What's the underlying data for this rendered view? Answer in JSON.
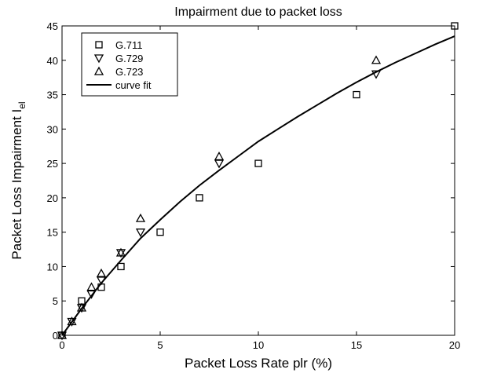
{
  "chart_data": {
    "type": "scatter",
    "title": "Impairment due to packet loss",
    "xlabel": "Packet Loss Rate plr (%)",
    "ylabel_main": "Packet Loss Impairment I",
    "ylabel_sub": "el",
    "xlim": [
      0,
      20
    ],
    "ylim": [
      0,
      45
    ],
    "xticks": [
      0,
      5,
      10,
      15,
      20
    ],
    "yticks": [
      0,
      5,
      10,
      15,
      20,
      25,
      30,
      35,
      40,
      45
    ],
    "grid": false,
    "legend_position": "top-left",
    "series": [
      {
        "name": "G.711",
        "marker": "square",
        "points": [
          [
            0,
            0
          ],
          [
            1,
            5
          ],
          [
            2,
            7
          ],
          [
            3,
            10
          ],
          [
            5,
            15
          ],
          [
            7,
            20
          ],
          [
            10,
            25
          ],
          [
            15,
            35
          ],
          [
            20,
            45
          ]
        ]
      },
      {
        "name": "G.729",
        "marker": "triangle-down",
        "points": [
          [
            0,
            0
          ],
          [
            0.5,
            2
          ],
          [
            1,
            4
          ],
          [
            1.5,
            6
          ],
          [
            2,
            8
          ],
          [
            3,
            12
          ],
          [
            4,
            15
          ],
          [
            8,
            25
          ],
          [
            16,
            38
          ]
        ]
      },
      {
        "name": "G.723",
        "marker": "triangle-up",
        "points": [
          [
            0,
            0
          ],
          [
            0.5,
            2
          ],
          [
            1,
            4
          ],
          [
            1.5,
            7
          ],
          [
            2,
            9
          ],
          [
            3,
            12
          ],
          [
            4,
            17
          ],
          [
            8,
            26
          ],
          [
            16,
            40
          ]
        ]
      },
      {
        "name": "curve fit",
        "type": "line",
        "points": [
          [
            0,
            0
          ],
          [
            1,
            3.9
          ],
          [
            2,
            7.6
          ],
          [
            3,
            10.9
          ],
          [
            4,
            14.1
          ],
          [
            5,
            16.8
          ],
          [
            6,
            19.4
          ],
          [
            7,
            21.8
          ],
          [
            8,
            24.0
          ],
          [
            9,
            26.1
          ],
          [
            10,
            28.2
          ],
          [
            11,
            30.0
          ],
          [
            12,
            31.8
          ],
          [
            13,
            33.5
          ],
          [
            14,
            35.2
          ],
          [
            15,
            36.8
          ],
          [
            16,
            38.3
          ],
          [
            17,
            39.7
          ],
          [
            18,
            41.0
          ],
          [
            19,
            42.3
          ],
          [
            20,
            43.5
          ]
        ]
      }
    ]
  }
}
